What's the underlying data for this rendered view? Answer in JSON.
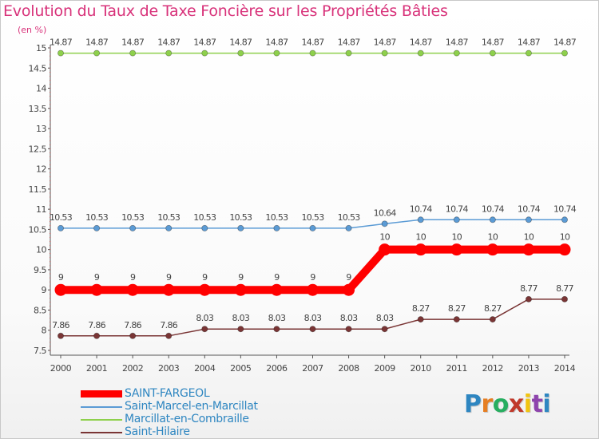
{
  "title": "Evolution du Taux de Taxe Foncière sur les Propriétés Bâties",
  "unit": "(en %)",
  "logo": {
    "letters": [
      "P",
      "r",
      "o",
      "x",
      "i",
      "t",
      "i"
    ],
    "colors": [
      "#2e86c1",
      "#e67e22",
      "#27ae60",
      "#c0392b",
      "#f1c40f",
      "#8e44ad",
      "#2e86c1"
    ]
  },
  "chart_data": {
    "type": "line",
    "title": "Evolution du Taux de Taxe Foncière sur les Propriétés Bâties",
    "ylabel": "(en %)",
    "xlabel": "",
    "x": [
      2000,
      2001,
      2002,
      2003,
      2004,
      2005,
      2006,
      2007,
      2008,
      2009,
      2010,
      2011,
      2012,
      2013,
      2014
    ],
    "ylim": [
      7.5,
      15
    ],
    "yticks": [
      "7.5",
      "8",
      "8.5",
      "9",
      "9.5",
      "10",
      "10.5",
      "11",
      "11.5",
      "12",
      "12.5",
      "13",
      "13.5",
      "14",
      "14.5",
      "15"
    ],
    "grid": false,
    "legend": "bottom-left",
    "series": [
      {
        "name": "SAINT-FARGEOL",
        "color": "#ff0000",
        "emphasis": true,
        "values": [
          9,
          9,
          9,
          9,
          9,
          9,
          9,
          9,
          9,
          10,
          10,
          10,
          10,
          10,
          10
        ],
        "labels": [
          "9",
          "9",
          "9",
          "9",
          "9",
          "9",
          "9",
          "9",
          "9",
          "10",
          "10",
          "10",
          "10",
          "10",
          "10"
        ]
      },
      {
        "name": "Saint-Marcel-en-Marcillat",
        "color": "#5b9bd5",
        "values": [
          10.53,
          10.53,
          10.53,
          10.53,
          10.53,
          10.53,
          10.53,
          10.53,
          10.53,
          10.64,
          10.74,
          10.74,
          10.74,
          10.74,
          10.74
        ],
        "labels": [
          "10.53",
          "10.53",
          "10.53",
          "10.53",
          "10.53",
          "10.53",
          "10.53",
          "10.53",
          "10.53",
          "10.64",
          "10.74",
          "10.74",
          "10.74",
          "10.74",
          "10.74"
        ]
      },
      {
        "name": "Marcillat-en-Combraille",
        "color": "#8ed04c",
        "values": [
          14.87,
          14.87,
          14.87,
          14.87,
          14.87,
          14.87,
          14.87,
          14.87,
          14.87,
          14.87,
          14.87,
          14.87,
          14.87,
          14.87,
          14.87
        ],
        "labels": [
          "14.87",
          "14.87",
          "14.87",
          "14.87",
          "14.87",
          "14.87",
          "14.87",
          "14.87",
          "14.87",
          "14.87",
          "14.87",
          "14.87",
          "14.87",
          "14.87",
          "14.87"
        ]
      },
      {
        "name": "Saint-Hilaire",
        "color": "#7a3535",
        "values": [
          7.86,
          7.86,
          7.86,
          7.86,
          8.03,
          8.03,
          8.03,
          8.03,
          8.03,
          8.03,
          8.27,
          8.27,
          8.27,
          8.77,
          8.77
        ],
        "labels": [
          "7.86",
          "7.86",
          "7.86",
          "7.86",
          "8.03",
          "8.03",
          "8.03",
          "8.03",
          "8.03",
          "8.03",
          "8.27",
          "8.27",
          "8.27",
          "8.77",
          "8.77"
        ]
      }
    ]
  }
}
